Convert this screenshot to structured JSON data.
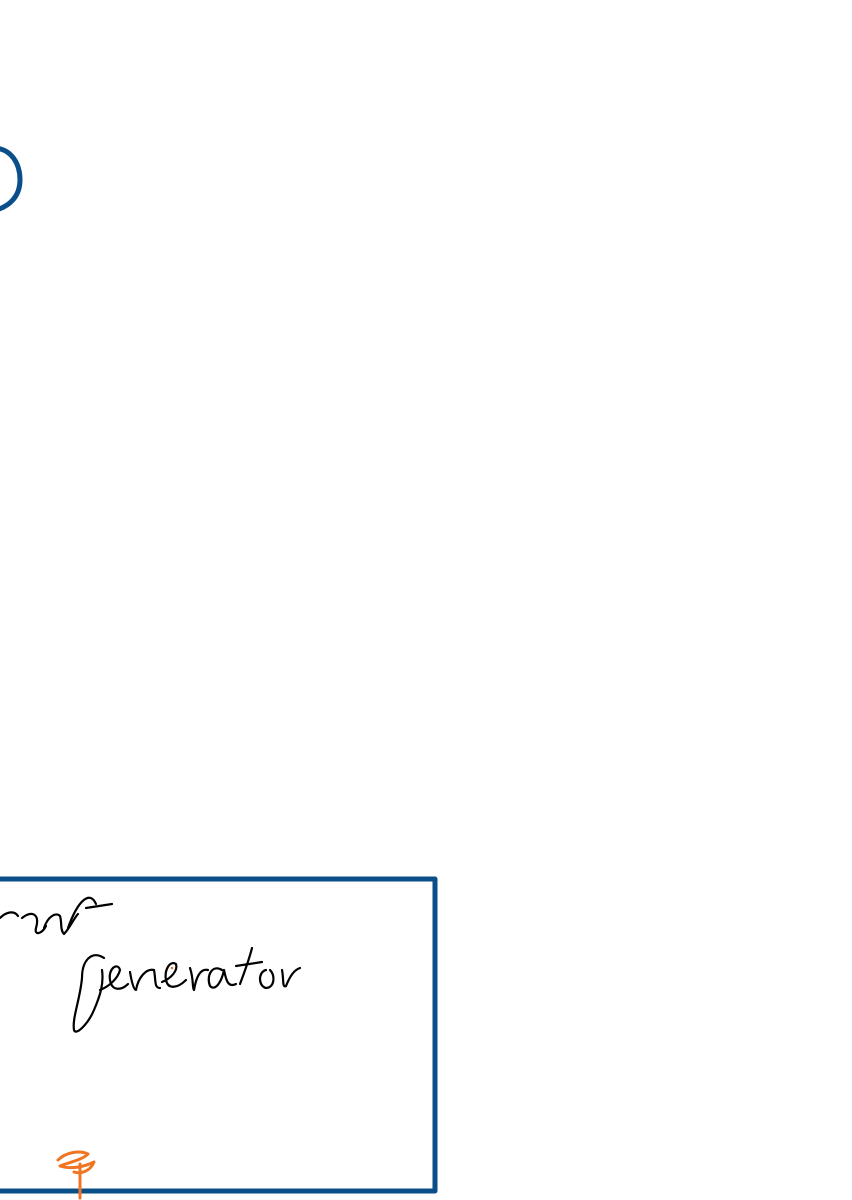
{
  "colors": {
    "background": "#ffffff",
    "shape_stroke": "#0b4f8a",
    "ink": "#000000",
    "annotation": "#f07522"
  },
  "handwriting": {
    "fragment": "...ant",
    "word": "Generator"
  }
}
